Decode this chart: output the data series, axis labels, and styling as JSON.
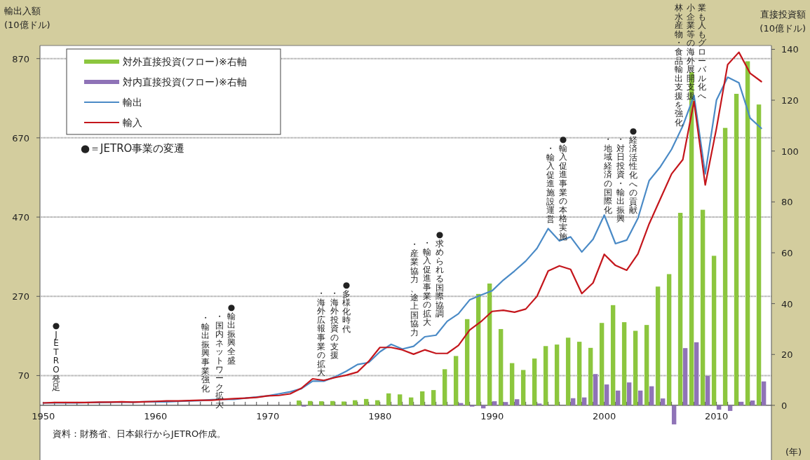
{
  "chart_data": {
    "type": "line",
    "ylabel": "輸出入額(10億ドル)",
    "y2label": "直接投資額(10億ドル)",
    "xlabel": "(年)",
    "x": [
      1950,
      1951,
      1952,
      1953,
      1954,
      1955,
      1956,
      1957,
      1958,
      1959,
      1960,
      1961,
      1962,
      1963,
      1964,
      1965,
      1966,
      1967,
      1968,
      1969,
      1970,
      1971,
      1972,
      1973,
      1974,
      1975,
      1976,
      1977,
      1978,
      1979,
      1980,
      1981,
      1982,
      1983,
      1984,
      1985,
      1986,
      1987,
      1988,
      1989,
      1990,
      1991,
      1992,
      1993,
      1994,
      1995,
      1996,
      1997,
      1998,
      1999,
      2000,
      2001,
      2002,
      2003,
      2004,
      2005,
      2006,
      2007,
      2008,
      2009,
      2010,
      2011,
      2012,
      2013,
      2014
    ],
    "series": [
      {
        "name": "対外直接投資(フロー)※右軸",
        "type": "bar",
        "axis": "y2",
        "color": "#8cc63e",
        "values": [
          null,
          null,
          null,
          null,
          null,
          null,
          null,
          null,
          null,
          null,
          null,
          null,
          null,
          null,
          null,
          null,
          null,
          null,
          null,
          null,
          null,
          null,
          null,
          1.9,
          1.7,
          1.6,
          1.7,
          1.5,
          2.0,
          2.5,
          2.0,
          4.7,
          4.3,
          3.1,
          5.5,
          6.0,
          14.2,
          19.4,
          33.9,
          43.8,
          47.9,
          30.0,
          16.6,
          13.9,
          18.4,
          23.3,
          23.9,
          26.6,
          25.0,
          22.6,
          32.4,
          39.4,
          32.7,
          29.3,
          31.6,
          46.7,
          51.6,
          75.7,
          131.0,
          76.9,
          58.8,
          109.1,
          122.5,
          135.3,
          118.3
        ]
      },
      {
        "name": "対内直接投資(フロー)※右軸",
        "type": "bar",
        "axis": "y2",
        "color": "#8f73b7",
        "values": [
          null,
          null,
          null,
          null,
          null,
          null,
          null,
          null,
          null,
          null,
          null,
          null,
          null,
          null,
          null,
          null,
          null,
          null,
          null,
          null,
          null,
          null,
          null,
          -0.5,
          0,
          0,
          0,
          0,
          0,
          0,
          0,
          0,
          0,
          0,
          -0.2,
          0.2,
          0.2,
          0.9,
          -0.5,
          -1.2,
          1.6,
          1.3,
          2.4,
          0,
          0.7,
          0,
          0,
          2.8,
          3.1,
          12.3,
          8.2,
          5.8,
          9.0,
          5.8,
          7.5,
          2.7,
          -7.5,
          22.5,
          24.8,
          11.6,
          -1.7,
          -2.2,
          1.4,
          1.9,
          9.4
        ]
      },
      {
        "name": "輸出",
        "color": "#4a8ac6",
        "values": [
          1,
          1,
          1,
          1,
          2,
          2,
          3,
          3,
          3,
          4,
          4,
          4,
          5,
          6,
          7,
          9,
          10,
          10,
          13,
          16,
          19,
          24,
          29,
          37,
          56,
          56,
          67,
          81,
          98,
          103,
          130,
          149,
          137,
          144,
          168,
          172,
          207,
          226,
          261,
          273,
          284,
          311,
          334,
          359,
          391,
          441,
          410,
          420,
          382,
          414,
          475,
          403,
          412,
          467,
          562,
          597,
          641,
          700,
          777,
          579,
          765,
          823,
          809,
          720,
          694
        ]
      },
      {
        "name": "輸入",
        "color": "#c4161c",
        "values": [
          1,
          2,
          2,
          2,
          2,
          3,
          3,
          4,
          3,
          4,
          5,
          6,
          6,
          7,
          8,
          8,
          10,
          12,
          13,
          15,
          19,
          20,
          24,
          38,
          62,
          58,
          65,
          71,
          79,
          106,
          141,
          141,
          135,
          124,
          135,
          126,
          126,
          146,
          185,
          206,
          232,
          235,
          230,
          238,
          270,
          334,
          347,
          338,
          277,
          304,
          376,
          348,
          336,
          377,
          453,
          516,
          579,
          615,
          762,
          551,
          694,
          855,
          886,
          833,
          812
        ]
      }
    ],
    "xlim": [
      1949.7,
      2014.9
    ],
    "xticks": [
      1950,
      {
        "value": 1951,
        "label": null
      },
      {
        "value": 1952,
        "label": null
      },
      {
        "value": 1953,
        "label": null
      },
      {
        "value": 1954,
        "label": null
      },
      {
        "value": 1955,
        "label": null
      },
      {
        "value": 1956,
        "label": null
      },
      {
        "value": 1957,
        "label": null
      },
      {
        "value": 1958,
        "label": null
      },
      {
        "value": 1959,
        "label": null
      },
      1960,
      {
        "value": 1961,
        "label": null
      },
      {
        "value": 1962,
        "label": null
      },
      {
        "value": 1963,
        "label": null
      },
      {
        "value": 1964,
        "label": null
      },
      {
        "value": 1965,
        "label": null
      },
      {
        "value": 1966,
        "label": null
      },
      {
        "value": 1967,
        "label": null
      },
      {
        "value": 1968,
        "label": null
      },
      {
        "value": 1969,
        "label": null
      },
      1970,
      {
        "value": 1971,
        "label": null
      },
      {
        "value": 1972,
        "label": null
      },
      {
        "value": 1973,
        "label": null
      },
      {
        "value": 1974,
        "label": null
      },
      {
        "value": 1975,
        "label": null
      },
      {
        "value": 1976,
        "label": null
      },
      {
        "value": 1977,
        "label": null
      },
      {
        "value": 1978,
        "label": null
      },
      {
        "value": 1979,
        "label": null
      },
      1980,
      {
        "value": 1981,
        "label": null
      },
      {
        "value": 1982,
        "label": null
      },
      {
        "value": 1983,
        "label": null
      },
      {
        "value": 1984,
        "label": null
      },
      {
        "value": 1985,
        "label": null
      },
      {
        "value": 1986,
        "label": null
      },
      {
        "value": 1987,
        "label": null
      },
      {
        "value": 1988,
        "label": null
      },
      {
        "value": 1989,
        "label": null
      },
      1990,
      {
        "value": 1991,
        "label": null
      },
      {
        "value": 1992,
        "label": null
      },
      {
        "value": 1993,
        "label": null
      },
      {
        "value": 1994,
        "label": null
      },
      {
        "value": 1995,
        "label": null
      },
      {
        "value": 1996,
        "label": null
      },
      {
        "value": 1997,
        "label": null
      },
      {
        "value": 1998,
        "label": null
      },
      {
        "value": 1999,
        "label": null
      },
      2000,
      {
        "value": 2001,
        "label": null
      },
      {
        "value": 2002,
        "label": null
      },
      {
        "value": 2003,
        "label": null
      },
      {
        "value": 2004,
        "label": null
      },
      {
        "value": 2005,
        "label": null
      },
      {
        "value": 2006,
        "label": null
      },
      {
        "value": 2007,
        "label": null
      },
      {
        "value": 2008,
        "label": null
      },
      {
        "value": 2009,
        "label": null
      },
      2010,
      {
        "value": 2011,
        "label": null
      },
      {
        "value": 2012,
        "label": null
      },
      {
        "value": 2013,
        "label": null
      },
      {
        "value": 2014,
        "label": null
      }
    ],
    "ylim": [
      -143,
      903
    ],
    "yticks": [
      70,
      270,
      470,
      670,
      870
    ],
    "y2lim": [
      -21.5,
      141.5
    ],
    "y2ticks": [
      0,
      20,
      40,
      60,
      80,
      100,
      120,
      140
    ],
    "grid": "y",
    "legend": "top left",
    "annotations": [
      "●＝JETRO事業の変遷",
      "資料：財務省、日本銀行からJETRO作成。",
      "●JETRO発足",
      "●輸出振興全盛",
      "・国内ネットワーク拡大",
      "・輸出振興事業強化",
      "●多様化時代",
      "・海外投資の支援",
      "・海外広報事業の拡大",
      "●求められる国際協調",
      "・輸入促進事業の拡大",
      "・産業協力、途上国協力",
      "●輸入促進事業の本格実施",
      "・輸入促進施設運営",
      "●経済活性化への貢献",
      "・対日投資・輸出振興",
      "・地域経済の国際化",
      "業も人もグローバル化へ",
      "小企業等の海外展開支援",
      "林水産物・食品輸出支援を強化"
    ]
  }
}
